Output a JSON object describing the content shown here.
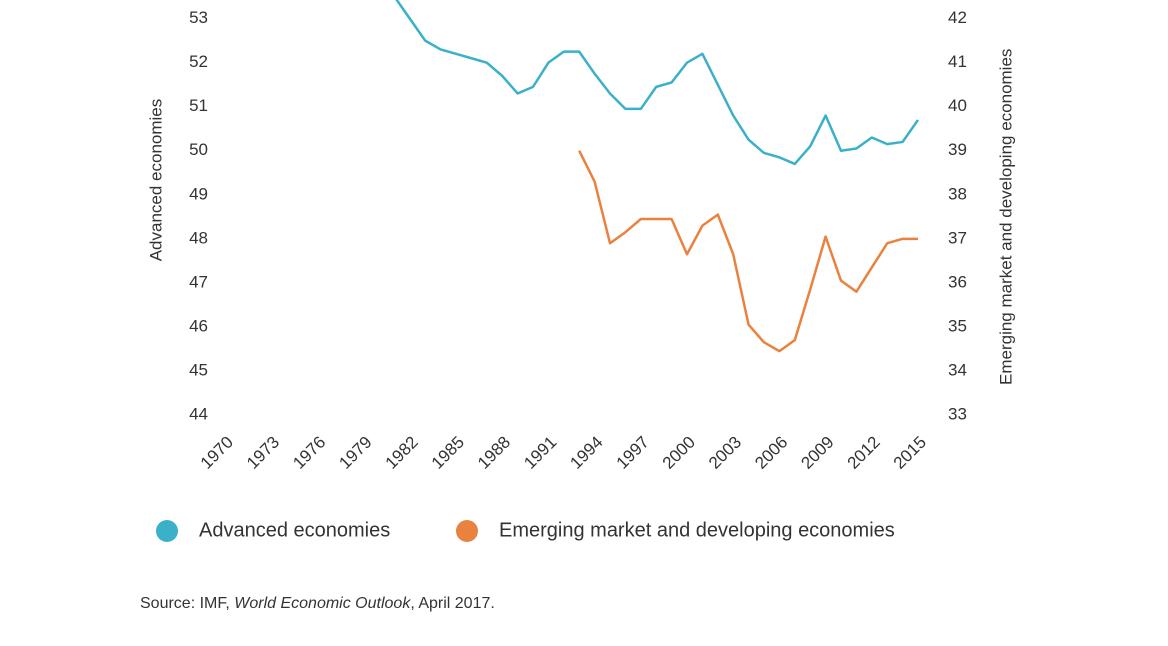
{
  "chart_data": {
    "type": "line",
    "y_label": "Advanced economies",
    "y2_label": "Emerging market and developing economies",
    "x": [
      1970,
      1971,
      1972,
      1973,
      1974,
      1975,
      1976,
      1977,
      1978,
      1979,
      1980,
      1981,
      1982,
      1983,
      1984,
      1985,
      1986,
      1987,
      1988,
      1989,
      1990,
      1991,
      1992,
      1993,
      1994,
      1995,
      1996,
      1997,
      1998,
      1999,
      2000,
      2001,
      2002,
      2003,
      2004,
      2005,
      2006,
      2007,
      2008,
      2009,
      2010,
      2011,
      2012,
      2013,
      2014,
      2015
    ],
    "xlim": [
      1970,
      2015
    ],
    "xticks": [
      1970,
      1973,
      1976,
      1979,
      1982,
      1985,
      1988,
      1991,
      1994,
      1997,
      2000,
      2003,
      2006,
      2009,
      2012,
      2015
    ],
    "ylim": [
      44,
      53.4
    ],
    "yticks": [
      44,
      45,
      46,
      47,
      48,
      49,
      50,
      51,
      52,
      53
    ],
    "y2lim": [
      33,
      42.4
    ],
    "y2ticks": [
      33,
      34,
      35,
      36,
      37,
      38,
      39,
      40,
      41,
      42
    ],
    "series": [
      {
        "name": "Advanced economies",
        "color": "#3bb0c9",
        "values": [
          null,
          null,
          null,
          null,
          null,
          null,
          null,
          null,
          null,
          null,
          null,
          53.5,
          53.0,
          52.5,
          52.3,
          52.2,
          52.1,
          52.0,
          51.7,
          51.3,
          51.45,
          52.0,
          52.25,
          52.25,
          51.75,
          51.3,
          50.95,
          50.95,
          51.45,
          51.55,
          52.0,
          52.2,
          51.5,
          50.8,
          50.25,
          49.95,
          49.85,
          49.7,
          50.1,
          50.8,
          50.0,
          50.05,
          50.3,
          50.15,
          50.2,
          50.7
        ]
      },
      {
        "name": "Emerging market and developing economies",
        "color": "#e8823e",
        "axis": "y2",
        "values": [
          null,
          null,
          null,
          null,
          null,
          null,
          null,
          null,
          null,
          null,
          null,
          null,
          null,
          null,
          null,
          null,
          null,
          null,
          null,
          null,
          null,
          null,
          null,
          39.0,
          38.3,
          36.9,
          37.15,
          37.45,
          37.45,
          37.45,
          36.65,
          37.3,
          37.55,
          36.65,
          35.05,
          34.65,
          34.45,
          34.7,
          35.85,
          37.05,
          36.05,
          35.8,
          36.35,
          36.9,
          37.0,
          37.0
        ]
      }
    ],
    "source": {
      "prefix": "Source: IMF, ",
      "publication": "World Economic Outlook",
      "suffix": ", April 2017."
    }
  }
}
